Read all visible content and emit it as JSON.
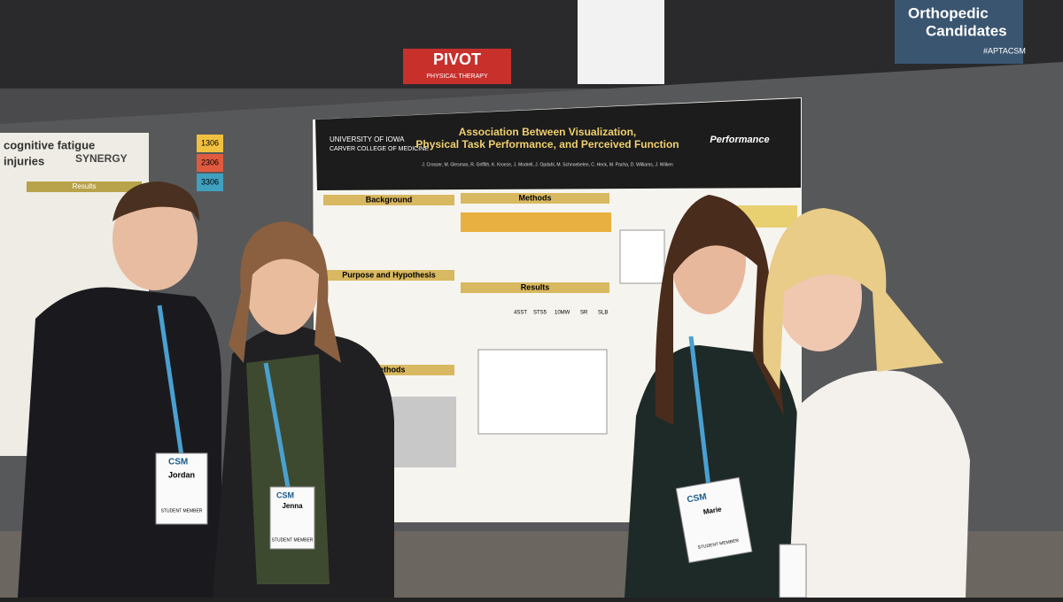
{
  "signs": {
    "pivot": "PIVOT",
    "pivot_sub": "PHYSICAL THERAPY",
    "banner": "Orthopedic",
    "banner_2": "Candidates",
    "hashtag": "#APTACSM",
    "board_numbers": [
      "1306",
      "2306",
      "3306"
    ]
  },
  "left_poster": {
    "title": "cognitive fatigue",
    "title_2": "injuries",
    "logo": "SYNERGY",
    "section": "Results"
  },
  "poster": {
    "title": "Association Between Visualization,",
    "title_2": "Physical Task Performance, and Perceived Function",
    "institution": "UNIVERSITY OF IOWA",
    "institution_2": "CARVER COLLEGE OF MEDICINE",
    "sponsor": "Performance",
    "authors": "J. Crosser, M. Glesman, R. Griffith, K. Kroeze, J. Modrell, J. Opdahl, M. Schnoebelen, C. Heck, M. Pacha, D. Williams, J. Wilken",
    "sections": {
      "background": "Background",
      "purpose": "Purpose and Hypothesis",
      "methods": "Methods",
      "methods_2": "Methods",
      "results": "Results"
    },
    "table_head": [
      "4SST",
      "STS5",
      "10MW",
      "SR",
      "SLB"
    ]
  },
  "badges": [
    {
      "conference": "CSM",
      "name": "Jordan",
      "role": "STUDENT MEMBER"
    },
    {
      "conference": "CSM",
      "name": "Jenna",
      "role": "STUDENT MEMBER"
    },
    {
      "conference": "CSM",
      "name": "Marie",
      "role": "STUDENT MEMBER"
    }
  ]
}
